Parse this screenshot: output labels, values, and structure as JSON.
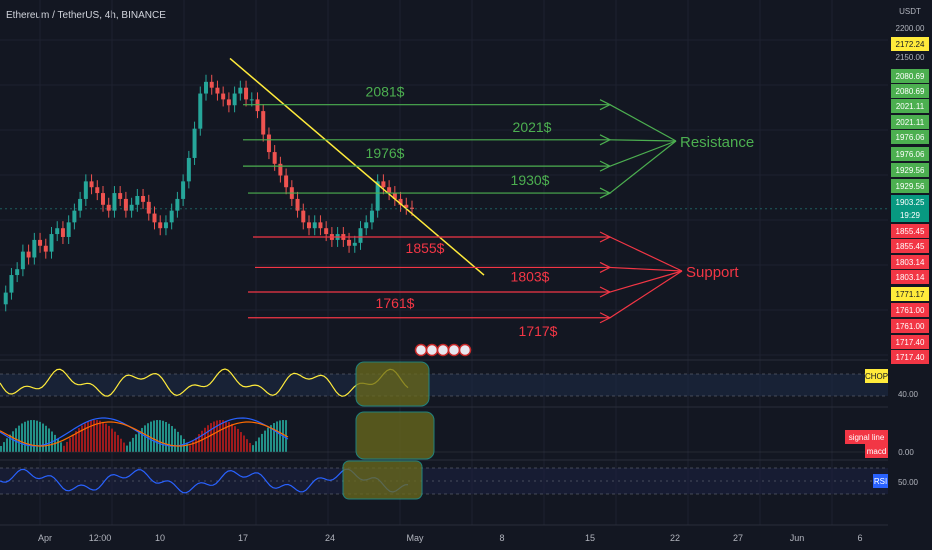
{
  "header": {
    "title": "Ethereum / TetherUS, 4h, BINANCE"
  },
  "colors": {
    "bg": "#131722",
    "grid": "#1e2230",
    "resistance": "#4caf50",
    "support": "#f23645",
    "trend": "#ffeb3b",
    "chop": "#ffeb3b",
    "rsi": "#2962ff",
    "macd": "#2962ff",
    "signal": "#ff6d00",
    "highlight_fill": "#6b6b1c",
    "highlight_stroke": "#26a69a",
    "axis_text": "#b2b5be",
    "up": "#26a69a",
    "down": "#ef5350"
  },
  "chart_data": {
    "type": "line",
    "title": "",
    "ylabel": "USDT",
    "ylim": [
      1650,
      2200
    ],
    "x_ticks": [
      "Apr",
      "12:00",
      "10",
      "17",
      "24",
      "May",
      "8",
      "15",
      "22",
      "27",
      "Jun",
      "6"
    ],
    "price_axis_ticks": [
      "2200.00",
      "2150.00"
    ],
    "price_labels": [
      {
        "text": "2172.24",
        "kind": "yellow"
      },
      {
        "text": "2080.69",
        "kind": "green"
      },
      {
        "text": "2080.69",
        "kind": "green"
      },
      {
        "text": "2021.11",
        "kind": "green"
      },
      {
        "text": "2021.11",
        "kind": "green"
      },
      {
        "text": "1976.06",
        "kind": "green"
      },
      {
        "text": "1976.06",
        "kind": "green"
      },
      {
        "text": "1929.56",
        "kind": "green"
      },
      {
        "text": "1929.56",
        "kind": "green"
      },
      {
        "text": "1903.25",
        "kind": "teal"
      },
      {
        "text": "19:29",
        "kind": "teal"
      },
      {
        "text": "1855.45",
        "kind": "red"
      },
      {
        "text": "1855.45",
        "kind": "red"
      },
      {
        "text": "1803.14",
        "kind": "red"
      },
      {
        "text": "1803.14",
        "kind": "red"
      },
      {
        "text": "1771.17",
        "kind": "yellow"
      },
      {
        "text": "1761.00",
        "kind": "red"
      },
      {
        "text": "1761.00",
        "kind": "red"
      },
      {
        "text": "1717.40",
        "kind": "red"
      },
      {
        "text": "1717.40",
        "kind": "red"
      }
    ],
    "resistance_levels": [
      {
        "label": "2081$",
        "value": 2081
      },
      {
        "label": "2021$",
        "value": 2021
      },
      {
        "label": "1976$",
        "value": 1976
      },
      {
        "label": "1930$",
        "value": 1930
      }
    ],
    "support_levels": [
      {
        "label": "1855$",
        "value": 1855
      },
      {
        "label": "1803$",
        "value": 1803
      },
      {
        "label": "1761$",
        "value": 1761
      },
      {
        "label": "1717$",
        "value": 1717
      }
    ],
    "resistance_label": "Resistance",
    "support_label": "Support",
    "trendline": {
      "from": 2160,
      "to": 1790
    },
    "price_series": [
      1740,
      1760,
      1790,
      1800,
      1830,
      1820,
      1850,
      1840,
      1830,
      1860,
      1870,
      1855,
      1880,
      1900,
      1920,
      1950,
      1940,
      1930,
      1910,
      1900,
      1930,
      1920,
      1900,
      1910,
      1925,
      1915,
      1895,
      1880,
      1870,
      1880,
      1900,
      1920,
      1950,
      1990,
      2040,
      2100,
      2120,
      2110,
      2100,
      2090,
      2080,
      2100,
      2110,
      2090,
      2090,
      2070,
      2030,
      2000,
      1980,
      1960,
      1940,
      1920,
      1900,
      1880,
      1870,
      1880,
      1870,
      1860,
      1850,
      1860,
      1850,
      1840,
      1845,
      1870,
      1880,
      1900,
      1950,
      1940,
      1930,
      1920,
      1910,
      1905,
      1903
    ],
    "indicators": {
      "chop": {
        "label": "CHOP",
        "tick": "40.00"
      },
      "macd": {
        "signal_label": "signal line",
        "macd_label": "macd",
        "tick": "0.00"
      },
      "rsi": {
        "label": "RSI",
        "tick": "50.00"
      }
    }
  }
}
